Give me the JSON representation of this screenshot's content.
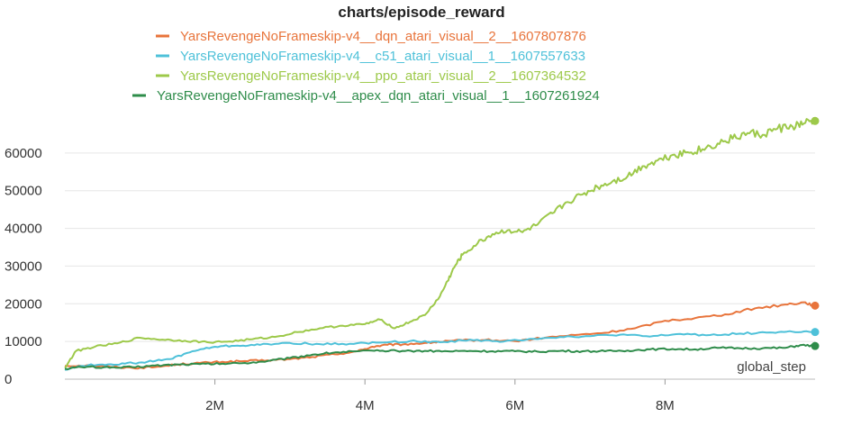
{
  "chart_data": {
    "type": "line",
    "title": "charts/episode_reward",
    "xlabel": "global_step",
    "ylabel": "",
    "xlim": [
      0,
      10000000
    ],
    "ylim": [
      0,
      70000
    ],
    "x_ticks": [
      {
        "value": 2000000,
        "label": "2M"
      },
      {
        "value": 4000000,
        "label": "4M"
      },
      {
        "value": 6000000,
        "label": "6M"
      },
      {
        "value": 8000000,
        "label": "8M"
      }
    ],
    "y_ticks": [
      {
        "value": 0,
        "label": "0"
      },
      {
        "value": 10000,
        "label": "10000"
      },
      {
        "value": 20000,
        "label": "20000"
      },
      {
        "value": 30000,
        "label": "30000"
      },
      {
        "value": 40000,
        "label": "40000"
      },
      {
        "value": 50000,
        "label": "50000"
      },
      {
        "value": 60000,
        "label": "60000"
      }
    ],
    "grid": true,
    "legend_position": "top",
    "series": [
      {
        "name": "YarsRevengeNoFrameskip-v4__dqn_atari_visual__2__1607807876",
        "color": "#e8743b",
        "x": [
          0,
          300000,
          600000,
          900000,
          1200000,
          1500000,
          1800000,
          2100000,
          2400000,
          2700000,
          3000000,
          3300000,
          3600000,
          3900000,
          4100000,
          4300000,
          4500000,
          4800000,
          5000000,
          5300000,
          5600000,
          6000000,
          6400000,
          6800000,
          7200000,
          7600000,
          8000000,
          8400000,
          8800000,
          9200000,
          9600000,
          9850000,
          10000000
        ],
        "y": [
          3500,
          3700,
          3300,
          3000,
          3200,
          3900,
          4300,
          4600,
          4800,
          5000,
          5300,
          5900,
          6600,
          7400,
          8600,
          9100,
          9200,
          9600,
          9900,
          10300,
          10400,
          10100,
          11000,
          11700,
          12300,
          13500,
          15500,
          16200,
          17200,
          18800,
          19800,
          20400,
          19500
        ]
      },
      {
        "name": "YarsRevengeNoFrameskip-v4__c51_atari_visual__1__1607557633",
        "color": "#4ec1d9",
        "x": [
          0,
          200000,
          500000,
          800000,
          1100000,
          1400000,
          1700000,
          2000000,
          2300000,
          2600000,
          3000000,
          3400000,
          3800000,
          4200000,
          4600000,
          5000000,
          5400000,
          5800000,
          6200000,
          6600000,
          7000000,
          7400000,
          7800000,
          8200000,
          8600000,
          9000000,
          9400000,
          9700000,
          10000000
        ],
        "y": [
          2500,
          3500,
          3900,
          4100,
          4600,
          5300,
          7400,
          8600,
          8900,
          9100,
          9600,
          9300,
          9400,
          9700,
          10100,
          9800,
          10500,
          9900,
          10700,
          11200,
          11400,
          11800,
          11300,
          12000,
          11700,
          12100,
          12400,
          12600,
          12500
        ]
      },
      {
        "name": "YarsRevengeNoFrameskip-v4__ppo_atari_visual__2__1607364532",
        "color": "#9dc94a",
        "x": [
          0,
          150000,
          400000,
          700000,
          1000000,
          1300000,
          1600000,
          1900000,
          2200000,
          2500000,
          2800000,
          3100000,
          3400000,
          3700000,
          4000000,
          4200000,
          4400000,
          4600000,
          4800000,
          5000000,
          5100000,
          5200000,
          5300000,
          5500000,
          5700000,
          5900000,
          6100000,
          6300000,
          6500000,
          6700000,
          6900000,
          7100000,
          7300000,
          7500000,
          7700000,
          7900000,
          8100000,
          8300000,
          8500000,
          8700000,
          8900000,
          9100000,
          9300000,
          9500000,
          9700000,
          9850000,
          10000000
        ],
        "y": [
          3000,
          7500,
          8600,
          9500,
          11000,
          10500,
          10200,
          9800,
          10000,
          10600,
          11200,
          12500,
          13500,
          14200,
          14600,
          15800,
          13500,
          15200,
          17000,
          22000,
          26000,
          30000,
          33000,
          36000,
          38500,
          39500,
          39000,
          41000,
          44000,
          47000,
          49000,
          51000,
          52500,
          53800,
          56500,
          58000,
          59500,
          60200,
          61000,
          62500,
          63800,
          65300,
          64800,
          66500,
          67000,
          67800,
          68500
        ]
      },
      {
        "name": "YarsRevengeNoFrameskip-v4__apex_dqn_atari_visual__1__1607261924",
        "color": "#2e8c4a",
        "x": [
          0,
          300000,
          600000,
          900000,
          1200000,
          1500000,
          1800000,
          2100000,
          2400000,
          2700000,
          3000000,
          3300000,
          3600000,
          3900000,
          4200000,
          4500000,
          4800000,
          5100000,
          5400000,
          5700000,
          6000000,
          6300000,
          6600000,
          6900000,
          7200000,
          7500000,
          7800000,
          8100000,
          8400000,
          8700000,
          9000000,
          9300000,
          9600000,
          9800000,
          10000000
        ],
        "y": [
          2800,
          3300,
          3000,
          3200,
          3600,
          3900,
          4000,
          4100,
          4300,
          4800,
          5600,
          6500,
          7100,
          7400,
          7500,
          7500,
          7500,
          7400,
          7500,
          7400,
          7400,
          7300,
          7500,
          7400,
          7400,
          7600,
          7900,
          8000,
          7900,
          8300,
          8200,
          8200,
          8300,
          9000,
          8800
        ]
      }
    ]
  }
}
